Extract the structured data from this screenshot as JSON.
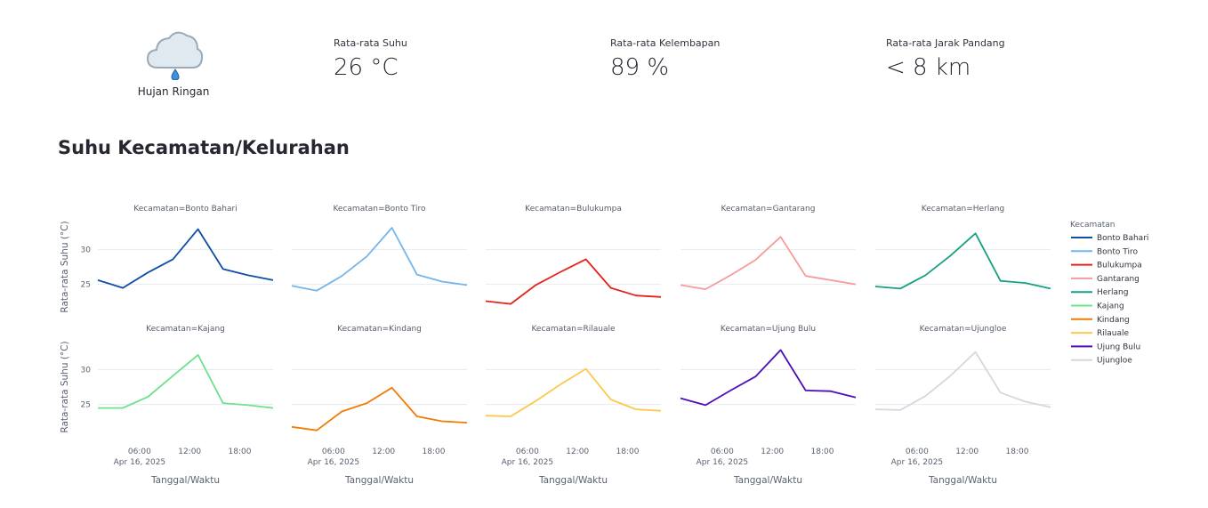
{
  "weather": {
    "icon": "rain-cloud-icon",
    "label": "Hujan Ringan"
  },
  "metrics": [
    {
      "label": "Rata-rata Suhu",
      "value": "26 °C"
    },
    {
      "label": "Rata-rata Kelembapan",
      "value": "89 %"
    },
    {
      "label": "Rata-rata Jarak Pandang",
      "value": "< 8 km"
    }
  ],
  "section_title": "Suhu Kecamatan/Kelurahan",
  "chart_data": {
    "type": "line",
    "facet_prefix": "Kecamatan=",
    "xlabel": "Tanggal/Waktu",
    "ylabel": "Rata-rata Suhu (°C)",
    "x": [
      "2025-04-16 01:00",
      "2025-04-16 04:00",
      "2025-04-16 07:00",
      "2025-04-16 10:00",
      "2025-04-16 13:00",
      "2025-04-16 16:00",
      "2025-04-16 19:00",
      "2025-04-16 22:00"
    ],
    "x_range": [
      "2025-04-16 01:00",
      "2025-04-16 22:00"
    ],
    "x_ticks": [
      "06:00",
      "12:00",
      "18:00"
    ],
    "x_tick_date": "Apr 16, 2025",
    "y_ticks": [
      25,
      30
    ],
    "ylim": [
      20.5,
      34.5
    ],
    "legend_title": "Kecamatan",
    "legend_position": "right",
    "grid": true,
    "series": [
      {
        "name": "Bonto Bahari",
        "color": "#0f4ea5",
        "values": [
          25.6,
          24.5,
          26.7,
          28.6,
          32.9,
          27.2,
          26.3,
          25.6
        ]
      },
      {
        "name": "Bonto Tiro",
        "color": "#74b5ec",
        "values": [
          24.8,
          24.1,
          26.2,
          29.0,
          33.1,
          26.4,
          25.4,
          24.9
        ]
      },
      {
        "name": "Bulukumpa",
        "color": "#e3231c",
        "values": [
          22.6,
          22.2,
          24.9,
          26.8,
          28.6,
          24.5,
          23.4,
          23.2
        ]
      },
      {
        "name": "Gantarang",
        "color": "#f59b9b",
        "values": [
          24.9,
          24.3,
          26.3,
          28.5,
          31.8,
          26.2,
          25.6,
          25.0
        ]
      },
      {
        "name": "Herlang",
        "color": "#18a083",
        "values": [
          24.7,
          24.4,
          26.3,
          29.1,
          32.3,
          25.5,
          25.2,
          24.4
        ]
      },
      {
        "name": "Kajang",
        "color": "#6ee28b",
        "values": [
          24.5,
          24.5,
          26.1,
          29.1,
          32.1,
          25.2,
          24.9,
          24.5
        ]
      },
      {
        "name": "Kindang",
        "color": "#f27b06",
        "values": [
          21.8,
          21.3,
          24.0,
          25.2,
          27.4,
          23.3,
          22.6,
          22.4
        ]
      },
      {
        "name": "Rilauale",
        "color": "#fbc94c",
        "values": [
          23.4,
          23.3,
          25.5,
          27.9,
          30.1,
          25.7,
          24.3,
          24.1
        ]
      },
      {
        "name": "Ujung Bulu",
        "color": "#4d0eb9",
        "values": [
          25.9,
          24.9,
          27.0,
          29.0,
          32.8,
          27.0,
          26.9,
          26.0
        ]
      },
      {
        "name": "Ujungloe",
        "color": "#d4d7de",
        "values": [
          24.3,
          24.2,
          26.2,
          29.1,
          32.5,
          26.7,
          25.4,
          24.6
        ]
      }
    ]
  }
}
